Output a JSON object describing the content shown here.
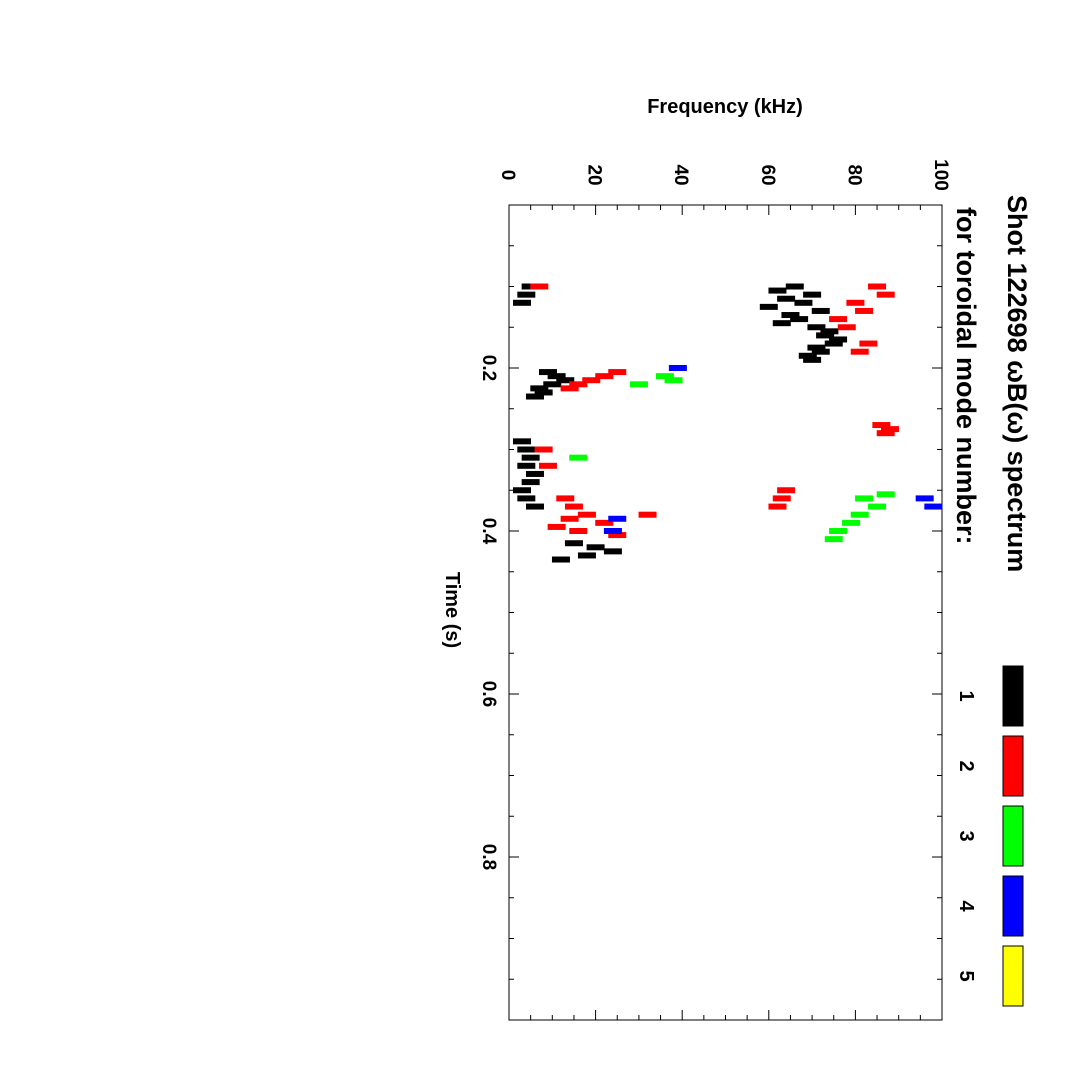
{
  "chart_data": {
    "type": "scatter",
    "orientation": "rotated-90-clockwise",
    "title": "Shot 122698 ωB(ω) spectrum",
    "subtitle": "for toroidal mode number:",
    "xlabel": "Time (s)",
    "ylabel": "Frequency (kHz)",
    "xlim": [
      0.0,
      1.0
    ],
    "ylim": [
      0,
      100
    ],
    "x_ticks": [
      "0.2",
      "0.4",
      "0.6",
      "0.8"
    ],
    "x_tick_values": [
      0.2,
      0.4,
      0.6,
      0.8
    ],
    "y_ticks": [
      "0",
      "20",
      "40",
      "60",
      "80",
      "100"
    ],
    "y_tick_values": [
      0,
      20,
      40,
      60,
      80,
      100
    ],
    "legend": [
      {
        "label": "1",
        "color": "#000000"
      },
      {
        "label": "2",
        "color": "#ff0000"
      },
      {
        "label": "3",
        "color": "#00ff00"
      },
      {
        "label": "4",
        "color": "#0000ff"
      },
      {
        "label": "5",
        "color": "#ffff00"
      }
    ],
    "series": [
      {
        "name": "1",
        "color": "#000000",
        "points": [
          [
            0.1,
            66
          ],
          [
            0.11,
            70
          ],
          [
            0.12,
            68
          ],
          [
            0.13,
            72
          ],
          [
            0.14,
            67
          ],
          [
            0.15,
            71
          ],
          [
            0.16,
            73
          ],
          [
            0.17,
            75
          ],
          [
            0.18,
            72
          ],
          [
            0.19,
            70
          ],
          [
            0.105,
            62
          ],
          [
            0.115,
            64
          ],
          [
            0.125,
            60
          ],
          [
            0.135,
            65
          ],
          [
            0.145,
            63
          ],
          [
            0.155,
            74
          ],
          [
            0.165,
            76
          ],
          [
            0.175,
            71
          ],
          [
            0.185,
            69
          ],
          [
            0.1,
            5
          ],
          [
            0.11,
            4
          ],
          [
            0.12,
            3
          ],
          [
            0.205,
            9
          ],
          [
            0.21,
            11
          ],
          [
            0.215,
            13
          ],
          [
            0.22,
            10
          ],
          [
            0.225,
            7
          ],
          [
            0.23,
            8
          ],
          [
            0.235,
            6
          ],
          [
            0.29,
            3
          ],
          [
            0.3,
            4
          ],
          [
            0.31,
            5
          ],
          [
            0.32,
            4
          ],
          [
            0.33,
            6
          ],
          [
            0.34,
            5
          ],
          [
            0.35,
            3
          ],
          [
            0.36,
            4
          ],
          [
            0.37,
            6
          ],
          [
            0.415,
            15
          ],
          [
            0.42,
            20
          ],
          [
            0.425,
            24
          ],
          [
            0.43,
            18
          ],
          [
            0.435,
            12
          ]
        ]
      },
      {
        "name": "2",
        "color": "#ff0000",
        "points": [
          [
            0.1,
            85
          ],
          [
            0.11,
            87
          ],
          [
            0.12,
            80
          ],
          [
            0.13,
            82
          ],
          [
            0.14,
            76
          ],
          [
            0.15,
            78
          ],
          [
            0.17,
            83
          ],
          [
            0.18,
            81
          ],
          [
            0.205,
            25
          ],
          [
            0.21,
            22
          ],
          [
            0.215,
            19
          ],
          [
            0.22,
            16
          ],
          [
            0.225,
            14
          ],
          [
            0.27,
            86
          ],
          [
            0.275,
            88
          ],
          [
            0.28,
            87
          ],
          [
            0.35,
            64
          ],
          [
            0.36,
            63
          ],
          [
            0.37,
            62
          ],
          [
            0.1,
            7
          ],
          [
            0.3,
            8
          ],
          [
            0.32,
            9
          ],
          [
            0.36,
            13
          ],
          [
            0.37,
            15
          ],
          [
            0.38,
            18
          ],
          [
            0.385,
            14
          ],
          [
            0.39,
            22
          ],
          [
            0.395,
            11
          ],
          [
            0.4,
            16
          ],
          [
            0.405,
            25
          ],
          [
            0.38,
            32
          ]
        ]
      },
      {
        "name": "3",
        "color": "#00ff00",
        "points": [
          [
            0.21,
            36
          ],
          [
            0.215,
            38
          ],
          [
            0.22,
            30
          ],
          [
            0.36,
            82
          ],
          [
            0.37,
            85
          ],
          [
            0.38,
            81
          ],
          [
            0.39,
            79
          ],
          [
            0.4,
            76
          ],
          [
            0.41,
            75
          ],
          [
            0.355,
            87
          ],
          [
            0.31,
            16
          ]
        ]
      },
      {
        "name": "4",
        "color": "#0000ff",
        "points": [
          [
            0.2,
            39
          ],
          [
            0.36,
            96
          ],
          [
            0.37,
            98
          ],
          [
            0.385,
            25
          ],
          [
            0.4,
            24
          ]
        ]
      },
      {
        "name": "5",
        "color": "#ffff00",
        "points": []
      }
    ]
  }
}
